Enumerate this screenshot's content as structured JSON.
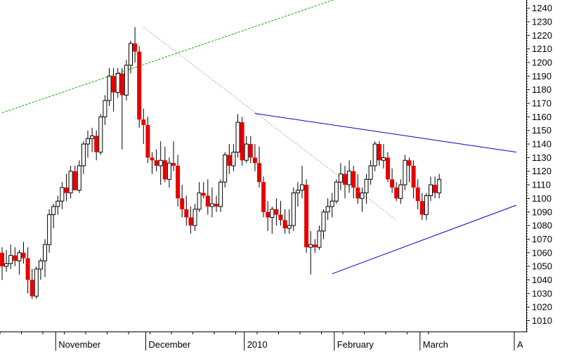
{
  "chart_data": {
    "type": "candlestick",
    "title": "",
    "xlabel": "",
    "ylabel": "",
    "ylim": [
      1002,
      1246
    ],
    "y_axis_position": "right",
    "y_ticks": [
      1010,
      1020,
      1030,
      1040,
      1050,
      1060,
      1070,
      1080,
      1090,
      1100,
      1110,
      1120,
      1130,
      1140,
      1150,
      1160,
      1170,
      1180,
      1190,
      1200,
      1210,
      1220,
      1230,
      1240
    ],
    "x_labels": [
      {
        "label": "November",
        "bar": 13
      },
      {
        "label": "December",
        "bar": 34
      },
      {
        "label": "2010",
        "bar": 57
      },
      {
        "label": "February",
        "bar": 78
      },
      {
        "label": "March",
        "bar": 98
      },
      {
        "label": "A",
        "bar": 120
      }
    ],
    "colors": {
      "up": "#ffffff",
      "down": "#e60000",
      "outline": "#000000",
      "trendline": "#0000cc",
      "guide": "#00aa00",
      "projection": "#aaaaaa"
    },
    "candles": [
      [
        1060,
        1064,
        1040,
        1050
      ],
      [
        1050,
        1062,
        1046,
        1052
      ],
      [
        1052,
        1066,
        1048,
        1058
      ],
      [
        1058,
        1064,
        1050,
        1054
      ],
      [
        1054,
        1062,
        1044,
        1060
      ],
      [
        1060,
        1068,
        1052,
        1056
      ],
      [
        1056,
        1064,
        1030,
        1040
      ],
      [
        1040,
        1048,
        1026,
        1028
      ],
      [
        1028,
        1050,
        1026,
        1048
      ],
      [
        1048,
        1056,
        1040,
        1054
      ],
      [
        1054,
        1070,
        1042,
        1066
      ],
      [
        1066,
        1092,
        1060,
        1088
      ],
      [
        1088,
        1096,
        1078,
        1094
      ],
      [
        1094,
        1102,
        1088,
        1098
      ],
      [
        1098,
        1112,
        1092,
        1108
      ],
      [
        1108,
        1118,
        1098,
        1104
      ],
      [
        1104,
        1124,
        1100,
        1120
      ],
      [
        1120,
        1124,
        1106,
        1106
      ],
      [
        1106,
        1128,
        1104,
        1124
      ],
      [
        1124,
        1142,
        1118,
        1140
      ],
      [
        1140,
        1150,
        1130,
        1144
      ],
      [
        1144,
        1152,
        1134,
        1146
      ],
      [
        1146,
        1150,
        1128,
        1134
      ],
      [
        1134,
        1162,
        1132,
        1160
      ],
      [
        1160,
        1176,
        1154,
        1172
      ],
      [
        1172,
        1196,
        1168,
        1190
      ],
      [
        1190,
        1196,
        1164,
        1178
      ],
      [
        1178,
        1196,
        1174,
        1192
      ],
      [
        1192,
        1196,
        1136,
        1176
      ],
      [
        1176,
        1202,
        1172,
        1198
      ],
      [
        1198,
        1216,
        1192,
        1214
      ],
      [
        1214,
        1226,
        1200,
        1208
      ],
      [
        1208,
        1212,
        1152,
        1158
      ],
      [
        1158,
        1166,
        1140,
        1154
      ],
      [
        1154,
        1160,
        1126,
        1130
      ],
      [
        1130,
        1134,
        1118,
        1128
      ],
      [
        1128,
        1136,
        1120,
        1124
      ],
      [
        1124,
        1142,
        1110,
        1128
      ],
      [
        1128,
        1138,
        1112,
        1114
      ],
      [
        1114,
        1130,
        1108,
        1126
      ],
      [
        1126,
        1142,
        1120,
        1124
      ],
      [
        1124,
        1132,
        1094,
        1100
      ],
      [
        1100,
        1110,
        1086,
        1092
      ],
      [
        1092,
        1102,
        1080,
        1086
      ],
      [
        1086,
        1094,
        1074,
        1080
      ],
      [
        1080,
        1096,
        1076,
        1092
      ],
      [
        1092,
        1112,
        1090,
        1104
      ],
      [
        1104,
        1112,
        1100,
        1102
      ],
      [
        1102,
        1114,
        1088,
        1094
      ],
      [
        1094,
        1108,
        1086,
        1096
      ],
      [
        1096,
        1102,
        1090,
        1094
      ],
      [
        1094,
        1114,
        1090,
        1112
      ],
      [
        1112,
        1134,
        1108,
        1132
      ],
      [
        1132,
        1140,
        1118,
        1124
      ],
      [
        1124,
        1140,
        1120,
        1134
      ],
      [
        1134,
        1162,
        1130,
        1156
      ],
      [
        1156,
        1160,
        1124,
        1128
      ],
      [
        1128,
        1146,
        1126,
        1140
      ],
      [
        1140,
        1146,
        1126,
        1130
      ],
      [
        1130,
        1140,
        1120,
        1126
      ],
      [
        1126,
        1138,
        1108,
        1112
      ],
      [
        1112,
        1116,
        1086,
        1090
      ],
      [
        1090,
        1098,
        1076,
        1086
      ],
      [
        1086,
        1094,
        1074,
        1092
      ],
      [
        1092,
        1100,
        1080,
        1088
      ],
      [
        1088,
        1098,
        1080,
        1084
      ],
      [
        1084,
        1092,
        1074,
        1078
      ],
      [
        1078,
        1092,
        1074,
        1080
      ],
      [
        1080,
        1108,
        1076,
        1104
      ],
      [
        1104,
        1112,
        1094,
        1106
      ],
      [
        1106,
        1124,
        1100,
        1110
      ],
      [
        1110,
        1114,
        1060,
        1064
      ],
      [
        1064,
        1076,
        1044,
        1066
      ],
      [
        1066,
        1070,
        1060,
        1064
      ],
      [
        1064,
        1080,
        1062,
        1076
      ],
      [
        1076,
        1092,
        1070,
        1090
      ],
      [
        1090,
        1100,
        1084,
        1094
      ],
      [
        1094,
        1104,
        1086,
        1098
      ],
      [
        1098,
        1114,
        1096,
        1112
      ],
      [
        1112,
        1126,
        1106,
        1118
      ],
      [
        1118,
        1124,
        1100,
        1110
      ],
      [
        1110,
        1128,
        1104,
        1120
      ],
      [
        1120,
        1124,
        1100,
        1108
      ],
      [
        1108,
        1118,
        1096,
        1100
      ],
      [
        1100,
        1108,
        1090,
        1104
      ],
      [
        1104,
        1118,
        1096,
        1114
      ],
      [
        1114,
        1128,
        1110,
        1124
      ],
      [
        1124,
        1142,
        1120,
        1140
      ],
      [
        1140,
        1142,
        1124,
        1128
      ],
      [
        1128,
        1140,
        1122,
        1130
      ],
      [
        1130,
        1134,
        1112,
        1114
      ],
      [
        1114,
        1122,
        1104,
        1108
      ],
      [
        1108,
        1112,
        1098,
        1100
      ],
      [
        1100,
        1114,
        1096,
        1110
      ],
      [
        1110,
        1132,
        1106,
        1128
      ],
      [
        1128,
        1130,
        1112,
        1124
      ],
      [
        1124,
        1128,
        1100,
        1108
      ],
      [
        1108,
        1114,
        1092,
        1098
      ],
      [
        1098,
        1104,
        1084,
        1088
      ],
      [
        1088,
        1104,
        1084,
        1102
      ],
      [
        1102,
        1116,
        1098,
        1110
      ],
      [
        1110,
        1116,
        1100,
        1104
      ],
      [
        1104,
        1118,
        1100,
        1114
      ]
    ],
    "trendlines": [
      {
        "from": [
          59,
          1162.5
        ],
        "to": [
          120,
          1134
        ]
      },
      {
        "from": [
          77,
          1044.5
        ],
        "to": [
          120,
          1095
        ]
      }
    ],
    "guides": [
      {
        "style": "dashed",
        "from": [
          0,
          1163
        ],
        "to": [
          80,
          1249
        ]
      }
    ],
    "projections": [
      {
        "style": "dotted",
        "from": [
          33,
          1226
        ],
        "to": [
          92,
          1084
        ]
      }
    ]
  }
}
